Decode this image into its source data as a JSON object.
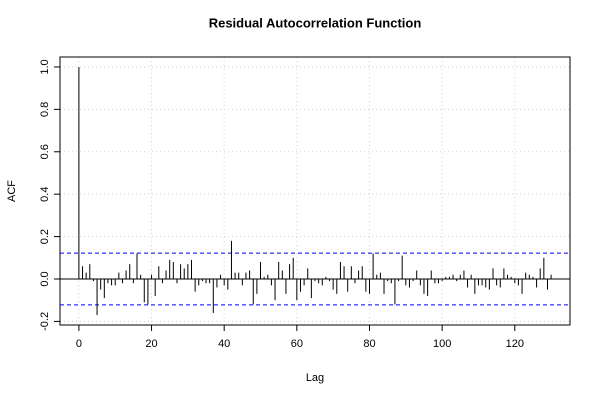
{
  "chart_data": {
    "type": "acf",
    "title": "Residual Autocorrelation Function",
    "x_label": "Lag",
    "y_label": "ACF",
    "x": [
      0,
      1,
      2,
      3,
      4,
      5,
      6,
      7,
      8,
      9,
      10,
      11,
      12,
      13,
      14,
      15,
      16,
      17,
      18,
      19,
      20,
      21,
      22,
      23,
      24,
      25,
      26,
      27,
      28,
      29,
      30,
      31,
      32,
      33,
      34,
      35,
      36,
      37,
      38,
      39,
      40,
      41,
      42,
      43,
      44,
      45,
      46,
      47,
      48,
      49,
      50,
      51,
      52,
      53,
      54,
      55,
      56,
      57,
      58,
      59,
      60,
      61,
      62,
      63,
      64,
      65,
      66,
      67,
      68,
      69,
      70,
      71,
      72,
      73,
      74,
      75,
      76,
      77,
      78,
      79,
      80,
      81,
      82,
      83,
      84,
      85,
      86,
      87,
      88,
      89,
      90,
      91,
      92,
      93,
      94,
      95,
      96,
      97,
      98,
      99,
      100,
      101,
      102,
      103,
      104,
      105,
      106,
      107,
      108,
      109,
      110,
      111,
      112,
      113,
      114,
      115,
      116,
      117,
      118,
      119,
      120,
      121,
      122,
      123,
      124,
      125,
      126,
      127,
      128,
      129,
      130
    ],
    "values": [
      1.0,
      0.06,
      0.03,
      0.07,
      -0.01,
      -0.17,
      -0.05,
      -0.09,
      -0.02,
      -0.03,
      -0.03,
      0.03,
      -0.02,
      0.04,
      0.07,
      -0.02,
      0.12,
      0.02,
      -0.11,
      -0.12,
      0.02,
      -0.08,
      0.06,
      -0.02,
      0.04,
      0.09,
      0.08,
      -0.02,
      0.07,
      0.05,
      0.07,
      0.09,
      -0.06,
      -0.03,
      -0.01,
      -0.02,
      -0.02,
      -0.16,
      -0.04,
      0.02,
      -0.03,
      -0.05,
      0.18,
      0.03,
      0.03,
      -0.03,
      0.03,
      0.04,
      -0.12,
      -0.07,
      0.08,
      0.01,
      0.02,
      -0.03,
      -0.1,
      0.08,
      0.04,
      -0.07,
      0.07,
      0.1,
      -0.1,
      -0.06,
      -0.03,
      0.05,
      -0.09,
      -0.01,
      -0.02,
      -0.03,
      0.01,
      -0.01,
      -0.05,
      -0.07,
      0.08,
      0.06,
      -0.06,
      0.06,
      -0.02,
      0.04,
      0.06,
      -0.06,
      -0.07,
      0.12,
      0.02,
      0.03,
      -0.07,
      -0.01,
      -0.02,
      -0.12,
      -0.01,
      0.11,
      -0.03,
      -0.04,
      -0.01,
      0.04,
      -0.03,
      -0.07,
      -0.08,
      0.04,
      -0.02,
      -0.02,
      -0.01,
      0.01,
      0.01,
      0.02,
      -0.01,
      0.02,
      0.04,
      -0.04,
      0.02,
      -0.07,
      -0.03,
      -0.03,
      -0.04,
      -0.05,
      0.05,
      -0.03,
      -0.04,
      0.05,
      0.02,
      0.01,
      -0.02,
      -0.03,
      -0.07,
      0.03,
      0.02,
      0.01,
      -0.04,
      0.05,
      0.1,
      -0.05,
      0.02
    ],
    "color": "#000000",
    "conf_bounds": [
      -0.122,
      0.122
    ],
    "conf_color": "#0000ff",
    "xlim": [
      -5.2,
      135.2
    ],
    "xticks": [
      0,
      20,
      40,
      60,
      80,
      100,
      120
    ],
    "ylim": [
      -0.217,
      1.047
    ],
    "yticks": [
      -0.2,
      {
        "value": 0,
        "label": "0.0"
      },
      0.2,
      0.4,
      0.6,
      0.8,
      {
        "value": 1,
        "label": "1.0"
      }
    ],
    "grid": true
  }
}
